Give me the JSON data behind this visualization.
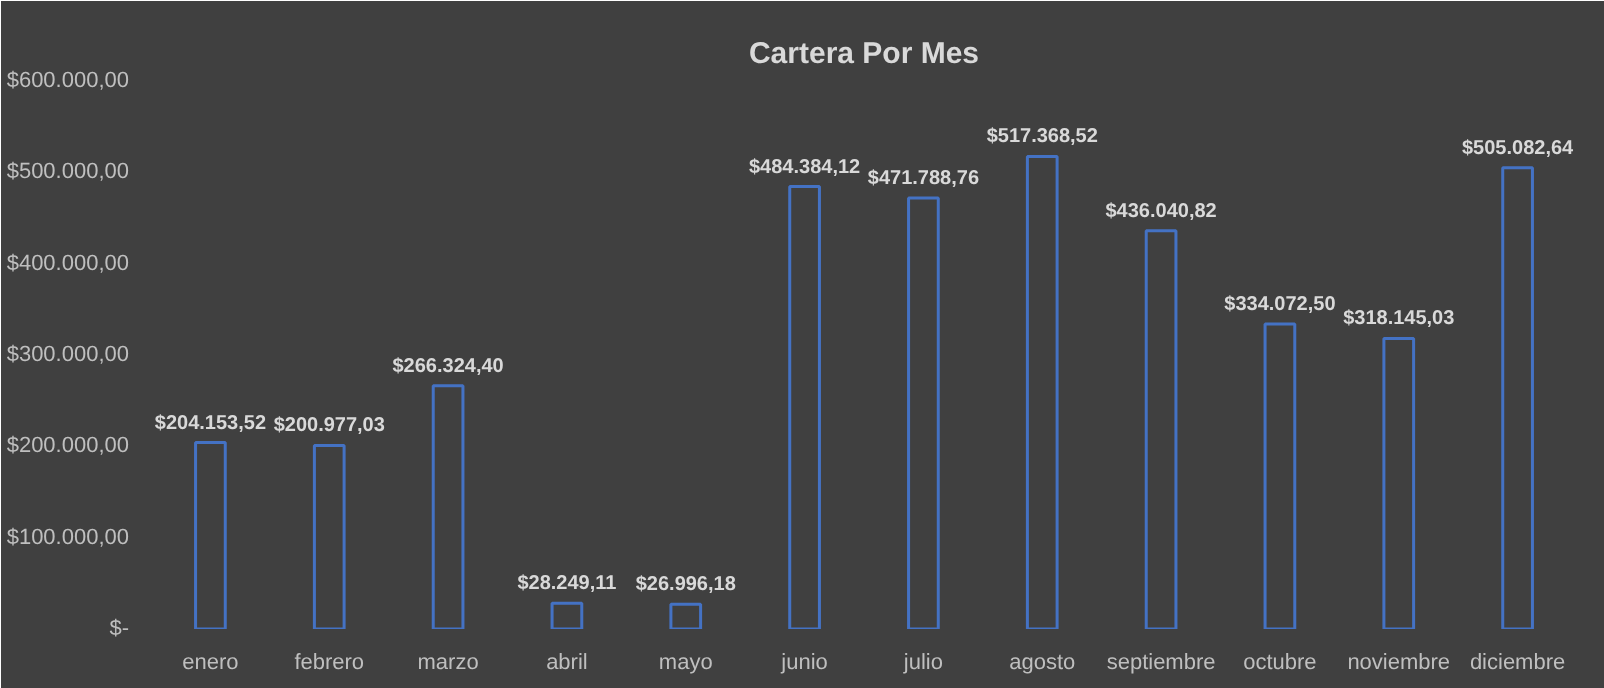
{
  "chart_data": {
    "type": "bar",
    "title": "Cartera Por Mes",
    "categories": [
      "enero",
      "febrero",
      "marzo",
      "abril",
      "mayo",
      "junio",
      "julio",
      "agosto",
      "septiembre",
      "octubre",
      "noviembre",
      "diciembre"
    ],
    "values": [
      204153.52,
      200977.03,
      266324.4,
      28249.11,
      26996.18,
      484384.12,
      471788.76,
      517368.52,
      436040.82,
      334072.5,
      318145.03,
      505082.64
    ],
    "value_labels": [
      "$204.153,52",
      "$200.977,03",
      "$266.324,40",
      "$28.249,11",
      "$26.996,18",
      "$484.384,12",
      "$471.788,76",
      "$517.368,52",
      "$436.040,82",
      "$334.072,50",
      "$318.145,03",
      "$505.082,64"
    ],
    "color": "#4472c4",
    "ylim": [
      0,
      600000
    ],
    "yticks": [
      {
        "value": 0,
        "label": "$-"
      },
      {
        "value": 100000,
        "label": "$100.000,00"
      },
      {
        "value": 200000,
        "label": "$200.000,00"
      },
      {
        "value": 300000,
        "label": "$300.000,00"
      },
      {
        "value": 400000,
        "label": "$400.000,00"
      },
      {
        "value": 500000,
        "label": "$500.000,00"
      },
      {
        "value": 600000,
        "label": "$600.000,00"
      }
    ],
    "grid": false
  }
}
